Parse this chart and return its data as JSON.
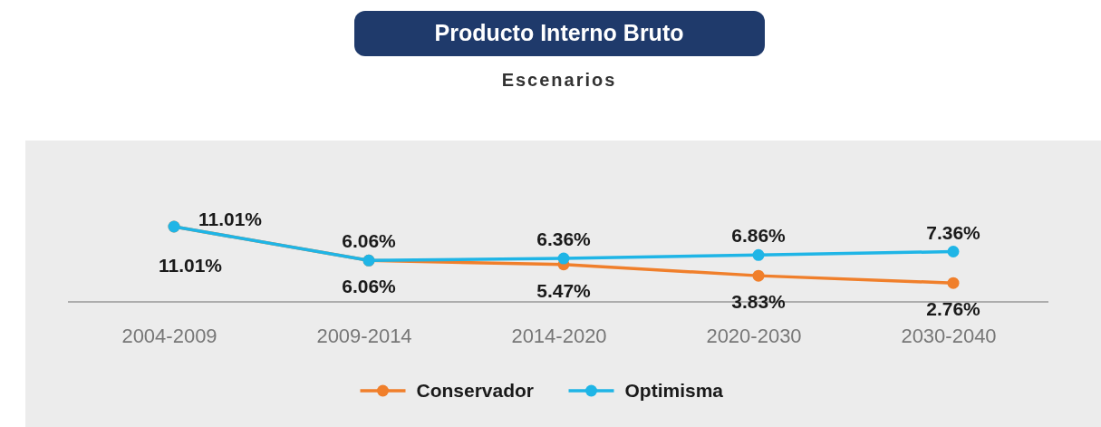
{
  "chart_data": {
    "type": "line",
    "title": "Producto Interno Bruto",
    "subtitle": "Escenarios",
    "categories": [
      "2004-2009",
      "2009-2014",
      "2014-2020",
      "2020-2030",
      "2030-2040"
    ],
    "series": [
      {
        "name": "Conservador",
        "color": "#f07f2b",
        "values": [
          11.01,
          6.06,
          5.47,
          3.83,
          2.76
        ],
        "value_labels": [
          "11.01%",
          "6.06%",
          "5.47%",
          "3.83%",
          "2.76%"
        ]
      },
      {
        "name": "Optimisma",
        "color": "#1fb5e6",
        "values": [
          11.01,
          6.06,
          6.36,
          6.86,
          7.36
        ],
        "value_labels": [
          "11.01%",
          "6.06%",
          "6.36%",
          "6.86%",
          "7.36%"
        ]
      }
    ],
    "marker": "circle",
    "legend": "bottom"
  }
}
